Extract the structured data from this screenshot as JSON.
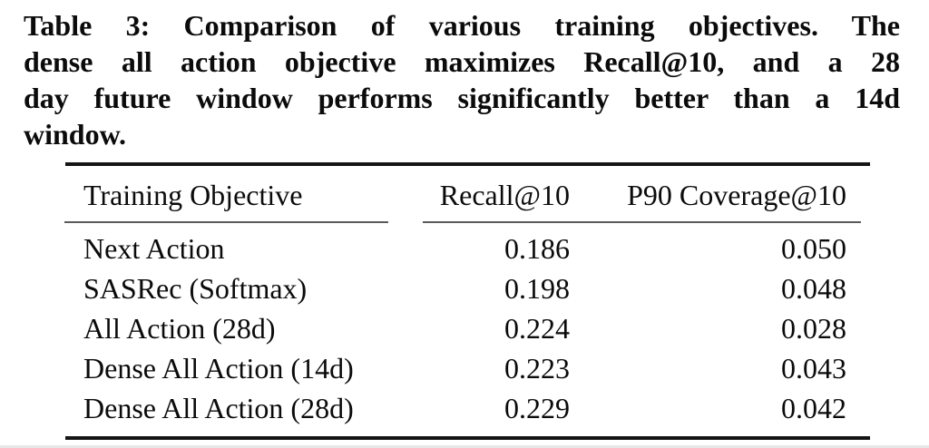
{
  "caption": {
    "lines": [
      "Table 3: Comparison of various training objectives. The",
      "dense all action objective maximizes Recall@10, and a 28",
      "day future window performs significantly better than a 14d",
      "window."
    ]
  },
  "table": {
    "columns": [
      "Training Objective",
      "Recall@10",
      "P90 Coverage@10"
    ],
    "rows": [
      {
        "objective": "Next Action",
        "recall": "0.186",
        "p90_coverage": "0.050"
      },
      {
        "objective": "SASRec (Softmax)",
        "recall": "0.198",
        "p90_coverage": "0.048"
      },
      {
        "objective": "All Action (28d)",
        "recall": "0.224",
        "p90_coverage": "0.028"
      },
      {
        "objective": "Dense All Action (14d)",
        "recall": "0.223",
        "p90_coverage": "0.043"
      },
      {
        "objective": "Dense All Action (28d)",
        "recall": "0.229",
        "p90_coverage": "0.042"
      }
    ]
  },
  "colors": {
    "text": "#0b0b0b",
    "heavy_rule": "#151515",
    "light_rule": "#5a5a5a",
    "background": "#ffffff"
  }
}
